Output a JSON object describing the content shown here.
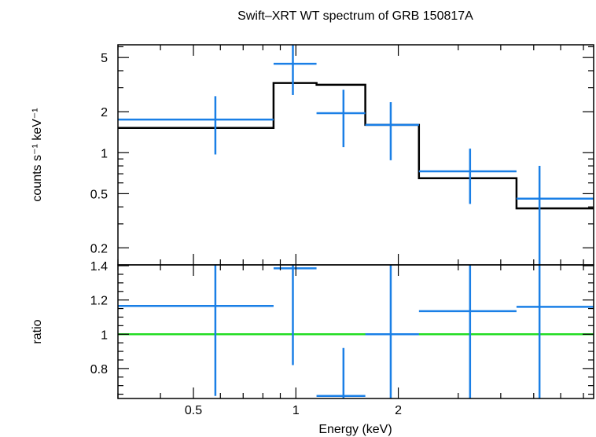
{
  "chart_data": {
    "type": "line",
    "title": "Swift–XRT WT spectrum of GRB 150817A",
    "xlabel": "Energy (keV)",
    "x_scale": "log",
    "xlim": [
      0.3,
      7.5
    ],
    "x_ticks": [
      {
        "value": 0.5,
        "label": "0.5"
      },
      {
        "value": 1,
        "label": "1"
      },
      {
        "value": 2,
        "label": "2"
      }
    ],
    "colors": {
      "data": "#1a7fe6",
      "model": "#000000",
      "unity": "#22dd22"
    },
    "panels": [
      {
        "name": "spectrum",
        "ylabel": "counts s⁻¹ keV⁻¹",
        "y_scale": "log",
        "ylim": [
          0.15,
          6.2
        ],
        "y_ticks": [
          {
            "value": 0.2,
            "label": "0.2"
          },
          {
            "value": 0.5,
            "label": "0.5"
          },
          {
            "value": 1,
            "label": "1"
          },
          {
            "value": 2,
            "label": "2"
          },
          {
            "value": 5,
            "label": "5"
          }
        ],
        "data": [
          {
            "x": 0.58,
            "xlo": 0.3,
            "xhi": 0.86,
            "y": 1.75,
            "ylo": 0.97,
            "yhi": 2.6
          },
          {
            "x": 0.98,
            "xlo": 0.86,
            "xhi": 1.15,
            "y": 4.5,
            "ylo": 2.65,
            "yhi": 6.2
          },
          {
            "x": 1.38,
            "xlo": 1.15,
            "xhi": 1.6,
            "y": 1.95,
            "ylo": 1.1,
            "yhi": 2.9
          },
          {
            "x": 1.9,
            "xlo": 1.6,
            "xhi": 2.3,
            "y": 1.6,
            "ylo": 0.88,
            "yhi": 2.35
          },
          {
            "x": 3.25,
            "xlo": 2.3,
            "xhi": 4.45,
            "y": 0.73,
            "ylo": 0.42,
            "yhi": 1.07
          },
          {
            "x": 5.2,
            "xlo": 4.45,
            "xhi": 7.5,
            "y": 0.46,
            "ylo": 0.15,
            "yhi": 0.8
          }
        ],
        "model": [
          {
            "xlo": 0.3,
            "xhi": 0.86,
            "y": 1.52
          },
          {
            "xlo": 0.86,
            "xhi": 1.15,
            "y": 3.25
          },
          {
            "xlo": 1.15,
            "xhi": 1.6,
            "y": 3.15
          },
          {
            "xlo": 1.6,
            "xhi": 2.3,
            "y": 1.6
          },
          {
            "xlo": 2.3,
            "xhi": 4.45,
            "y": 0.65
          },
          {
            "xlo": 4.45,
            "xhi": 7.5,
            "y": 0.39
          }
        ]
      },
      {
        "name": "ratio",
        "ylabel": "ratio",
        "y_scale": "linear",
        "ylim": [
          0.625,
          1.405
        ],
        "y_ticks": [
          {
            "value": 0.8,
            "label": "0.8"
          },
          {
            "value": 1,
            "label": "1"
          },
          {
            "value": 1.2,
            "label": "1.2"
          },
          {
            "value": 1.4,
            "label": "1.4"
          }
        ],
        "unity_line": 1,
        "data": [
          {
            "x": 0.58,
            "xlo": 0.3,
            "xhi": 0.86,
            "y": 1.165,
            "ylo": 0.64,
            "yhi": 1.405
          },
          {
            "x": 0.98,
            "xlo": 0.86,
            "xhi": 1.15,
            "y": 1.385,
            "ylo": 0.82,
            "yhi": 1.405
          },
          {
            "x": 1.38,
            "xlo": 1.15,
            "xhi": 1.6,
            "y": 0.64,
            "ylo": 0.625,
            "yhi": 0.92
          },
          {
            "x": 1.9,
            "xlo": 1.6,
            "xhi": 2.3,
            "y": 1.0,
            "ylo": 0.625,
            "yhi": 1.405
          },
          {
            "x": 3.25,
            "xlo": 2.3,
            "xhi": 4.45,
            "y": 1.135,
            "ylo": 0.625,
            "yhi": 1.405
          },
          {
            "x": 5.2,
            "xlo": 4.45,
            "xhi": 7.5,
            "y": 1.16,
            "ylo": 0.625,
            "yhi": 1.405
          }
        ]
      }
    ]
  }
}
